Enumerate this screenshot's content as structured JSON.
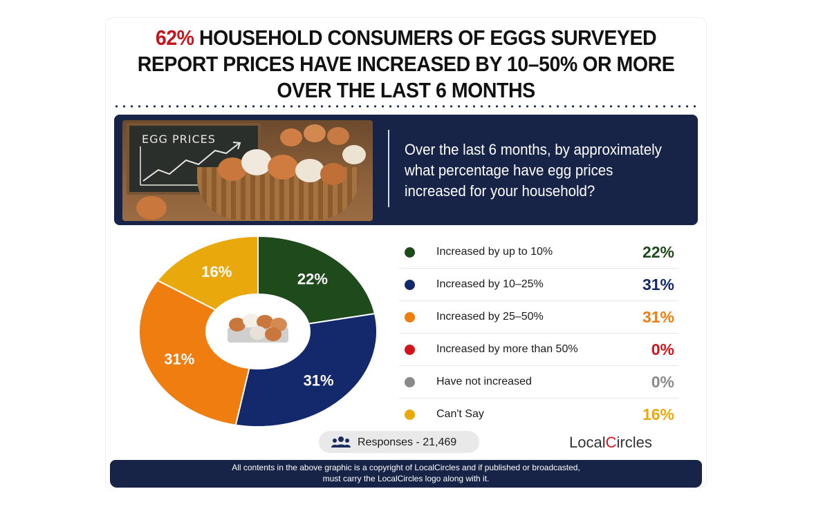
{
  "headline": {
    "accent": "62%",
    "line1": "HOUSEHOLD CONSUMERS OF EGGS SURVEYED",
    "line2": "REPORT PRICES HAVE INCREASED BY 10–50% OR MORE",
    "line3": "OVER THE LAST 6 MONTHS"
  },
  "photo": {
    "chalkboard_text": "EGG PRICES"
  },
  "question": "Over the last 6 months, by approximately what percentage have egg prices increased for your household?",
  "chart_data": {
    "type": "pie",
    "categories": [
      "Increased by up to 10%",
      "Increased by 10–25%",
      "Increased by 25–50%",
      "Increased by more than 50%",
      "Have not increased",
      "Can't Say"
    ],
    "values": [
      22,
      31,
      31,
      0,
      0,
      16
    ],
    "value_labels": [
      "22%",
      "31%",
      "31%",
      "0%",
      "0%",
      "16%"
    ],
    "colors": [
      "#1e4a1c",
      "#14296b",
      "#ef7d0f",
      "#d0161b",
      "#8a8a8a",
      "#e9a90c"
    ],
    "legend_position": "right"
  },
  "responses": {
    "icon": "users-icon",
    "text": "Responses - 21,469"
  },
  "logo": {
    "text_before": "Local",
    "text_c": "C",
    "text_after": "ircles"
  },
  "footer": {
    "line1": "All contents in the above graphic is a copyright of LocalCircles and if published or broadcasted,",
    "line2": "must carry the LocalCircles logo along with it."
  }
}
